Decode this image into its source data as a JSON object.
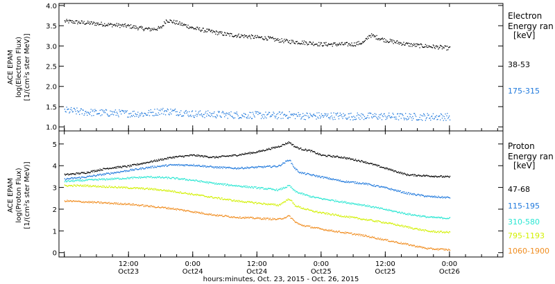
{
  "chart_data": [
    {
      "type": "scatter",
      "panel": "electron",
      "ylabel_lines": [
        "ACE EPAM",
        "log(Electron Flux)",
        "[1/(cm²s ster MeV)]"
      ],
      "ylim": [
        0.9,
        4.05
      ],
      "yticks": [
        "4.0",
        "3.5",
        "3.0",
        "2.5",
        "2.0",
        "1.5",
        "1.0"
      ],
      "ytick_values": [
        4.0,
        3.5,
        3.0,
        2.5,
        2.0,
        1.5,
        1.0
      ],
      "legend_title_lines": [
        "Electron",
        "Energy ran",
        "[keV]"
      ],
      "series": [
        {
          "name": "38-53",
          "color": "#000000",
          "x": [
            0,
            2,
            4,
            6,
            8,
            10,
            12,
            14,
            16,
            18,
            19,
            21,
            23,
            24,
            26,
            28,
            30,
            32,
            34,
            36,
            38,
            40,
            42,
            44,
            46,
            48,
            50,
            52,
            54,
            56,
            57,
            60,
            62,
            64,
            66,
            68,
            70,
            72
          ],
          "y": [
            3.62,
            3.6,
            3.58,
            3.56,
            3.54,
            3.52,
            3.5,
            3.45,
            3.42,
            3.45,
            3.65,
            3.58,
            3.5,
            3.45,
            3.4,
            3.35,
            3.3,
            3.27,
            3.25,
            3.22,
            3.2,
            3.15,
            3.12,
            3.1,
            3.08,
            3.05,
            3.05,
            3.05,
            3.05,
            3.1,
            3.28,
            3.15,
            3.1,
            3.05,
            3.02,
            3.0,
            2.98,
            2.95
          ]
        },
        {
          "name": "175-315",
          "color": "#1e78dc",
          "x": [
            0,
            3,
            6,
            9,
            12,
            15,
            18,
            21,
            24,
            27,
            30,
            33,
            36,
            39,
            42,
            45,
            48,
            51,
            54,
            57,
            60,
            63,
            66,
            69,
            72
          ],
          "y": [
            1.42,
            1.38,
            1.36,
            1.35,
            1.34,
            1.33,
            1.4,
            1.38,
            1.33,
            1.32,
            1.31,
            1.3,
            1.3,
            1.29,
            1.3,
            1.28,
            1.28,
            1.28,
            1.27,
            1.27,
            1.27,
            1.26,
            1.26,
            1.26,
            1.26
          ]
        }
      ]
    },
    {
      "type": "scatter",
      "panel": "proton",
      "ylabel_lines": [
        "ACE EPAM",
        "log(Proton Flux)",
        "[1/(cm²s ster MeV)]"
      ],
      "ylim": [
        -0.2,
        5.6
      ],
      "yticks": [
        "5",
        "4",
        "3",
        "2",
        "1",
        "0"
      ],
      "ytick_values": [
        5,
        4,
        3,
        2,
        1,
        0
      ],
      "legend_title_lines": [
        "Proton",
        "Energy ran",
        "[keV]"
      ],
      "series": [
        {
          "name": "47-68",
          "color": "#000000",
          "x": [
            0,
            4,
            8,
            12,
            16,
            20,
            24,
            28,
            32,
            36,
            40,
            42,
            43,
            44,
            46,
            48,
            52,
            56,
            60,
            64,
            68,
            72
          ],
          "y": [
            3.6,
            3.7,
            3.9,
            4.0,
            4.2,
            4.4,
            4.5,
            4.4,
            4.5,
            4.65,
            4.9,
            5.1,
            4.9,
            4.8,
            4.7,
            4.5,
            4.4,
            4.2,
            3.9,
            3.6,
            3.55,
            3.5
          ]
        },
        {
          "name": "115-195",
          "color": "#1e78dc",
          "x": [
            0,
            4,
            8,
            12,
            16,
            20,
            24,
            28,
            32,
            36,
            40,
            42,
            43,
            44,
            46,
            48,
            52,
            56,
            60,
            64,
            68,
            72
          ],
          "y": [
            3.4,
            3.5,
            3.65,
            3.8,
            3.95,
            4.05,
            4.05,
            3.95,
            3.9,
            3.95,
            4.0,
            4.3,
            3.9,
            3.7,
            3.6,
            3.5,
            3.3,
            3.2,
            3.0,
            2.75,
            2.6,
            2.55
          ]
        },
        {
          "name": "310-580",
          "color": "#28e6d2",
          "x": [
            0,
            4,
            8,
            12,
            16,
            20,
            24,
            28,
            32,
            36,
            40,
            42,
            43,
            44,
            46,
            48,
            52,
            56,
            60,
            64,
            68,
            72
          ],
          "y": [
            3.3,
            3.35,
            3.4,
            3.45,
            3.5,
            3.45,
            3.35,
            3.2,
            3.1,
            3.0,
            2.9,
            3.1,
            2.85,
            2.75,
            2.6,
            2.5,
            2.35,
            2.2,
            2.0,
            1.8,
            1.65,
            1.6
          ]
        },
        {
          "name": "795-1193",
          "color": "#d2f000",
          "x": [
            0,
            4,
            8,
            12,
            16,
            20,
            24,
            28,
            32,
            36,
            40,
            42,
            43,
            44,
            46,
            48,
            52,
            56,
            60,
            64,
            68,
            72
          ],
          "y": [
            3.1,
            3.1,
            3.05,
            3.0,
            2.95,
            2.85,
            2.7,
            2.55,
            2.4,
            2.3,
            2.2,
            2.5,
            2.2,
            2.1,
            1.95,
            1.85,
            1.7,
            1.55,
            1.4,
            1.2,
            1.0,
            0.95
          ]
        },
        {
          "name": "1060-1900",
          "color": "#f08c1e",
          "x": [
            0,
            4,
            8,
            12,
            16,
            20,
            24,
            28,
            32,
            36,
            40,
            42,
            43,
            44,
            46,
            48,
            52,
            56,
            60,
            64,
            68,
            72
          ],
          "y": [
            2.4,
            2.35,
            2.3,
            2.25,
            2.15,
            2.05,
            1.9,
            1.75,
            1.65,
            1.6,
            1.55,
            1.7,
            1.45,
            1.3,
            1.2,
            1.1,
            0.95,
            0.8,
            0.6,
            0.4,
            0.2,
            0.15
          ]
        }
      ]
    }
  ],
  "x_axis": {
    "xlim": [
      -1,
      82
    ],
    "tick_values": [
      0,
      12,
      24,
      36,
      48,
      60,
      72
    ],
    "tick_labels": [
      {
        "hm": "",
        "day": ""
      },
      {
        "hm": "12:00",
        "day": "Oct23"
      },
      {
        "hm": "0:00",
        "day": "Oct24"
      },
      {
        "hm": "12:00",
        "day": "Oct24"
      },
      {
        "hm": "0:00",
        "day": "Oct25"
      },
      {
        "hm": "12:00",
        "day": "Oct25"
      },
      {
        "hm": "0:00",
        "day": "Oct26"
      }
    ],
    "label_tick_values": [
      12,
      24,
      36,
      48,
      60,
      72
    ],
    "xlabel": "hours:minutes, Oct. 23, 2015 - Oct. 26, 2015"
  }
}
